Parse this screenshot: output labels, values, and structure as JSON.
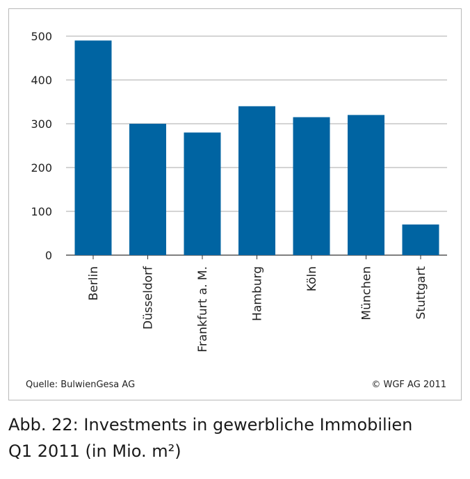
{
  "colors": {
    "bar": "#0064a2",
    "grid": "#8c8c8c",
    "axis": "#333333"
  },
  "chart_data": {
    "type": "bar",
    "categories": [
      "Berlin",
      "Düsseldorf",
      "Frankfurt  a. M.",
      "Hamburg",
      "Köln",
      "München",
      "Stuttgart"
    ],
    "values": [
      490,
      300,
      280,
      340,
      315,
      320,
      70
    ],
    "yticks": [
      0,
      100,
      200,
      300,
      400,
      500
    ],
    "ylim": [
      0,
      500
    ],
    "grid": true,
    "legend": "none"
  },
  "footer": {
    "source": "Quelle: BulwienGesa AG",
    "copyright": "© WGF AG 2011"
  },
  "caption": {
    "line1": "Abb. 22: Investments in gewerbliche Immobilien",
    "line2": "Q1 2011 (in Mio. m²)"
  }
}
